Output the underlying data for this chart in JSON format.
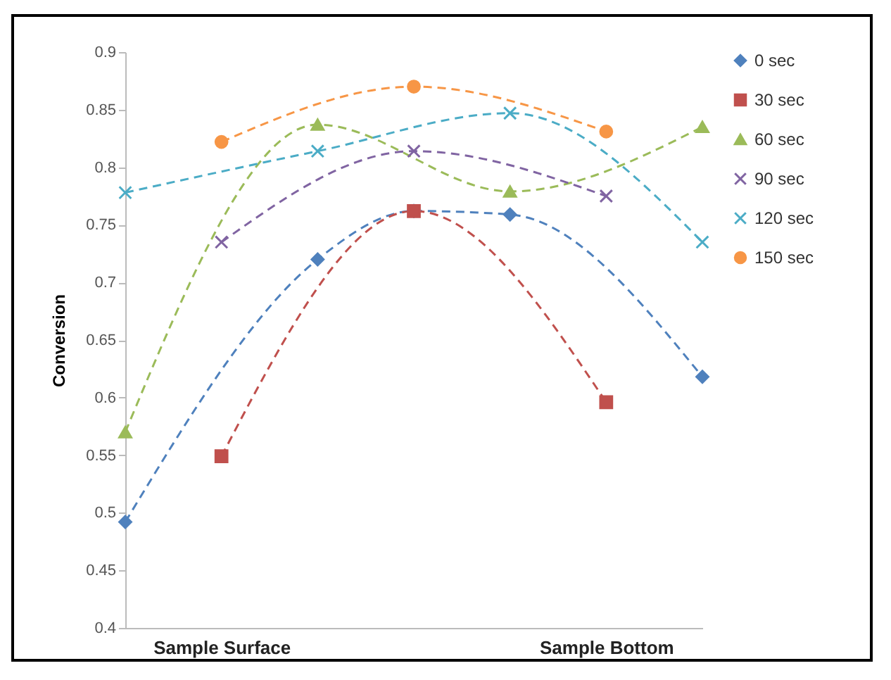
{
  "chart_data": {
    "type": "line",
    "ylabel": "Conversion",
    "categories": [
      null,
      "Sample Surface",
      null,
      null,
      null,
      "Sample Bottom",
      null
    ],
    "ylim": [
      0.4,
      0.9
    ],
    "yticks": [
      0.4,
      0.45,
      0.5,
      0.55,
      0.6,
      0.65,
      0.7,
      0.75,
      0.8,
      0.85,
      0.9
    ],
    "grid": false,
    "legend": "right",
    "line_style": "dashed",
    "series": [
      {
        "name": "0 sec",
        "color": "#4f81bd",
        "marker": "diamond",
        "values": [
          0.492,
          null,
          0.72,
          0.762,
          0.759,
          null,
          0.618
        ]
      },
      {
        "name": "30 sec",
        "color": "#c0504d",
        "marker": "square",
        "values": [
          null,
          0.549,
          null,
          0.762,
          null,
          0.596,
          null
        ]
      },
      {
        "name": "60 sec",
        "color": "#9bbb59",
        "marker": "triangle",
        "values": [
          0.57,
          null,
          0.837,
          null,
          0.779,
          null,
          0.835
        ]
      },
      {
        "name": "90 sec",
        "color": "#8064a2",
        "marker": "cross",
        "values": [
          null,
          0.735,
          null,
          0.814,
          null,
          0.775,
          null
        ]
      },
      {
        "name": "120 sec",
        "color": "#4bacc6",
        "marker": "cross",
        "values": [
          0.778,
          null,
          0.814,
          null,
          0.847,
          null,
          0.735
        ]
      },
      {
        "name": "150 sec",
        "color": "#f79646",
        "marker": "circle",
        "values": [
          null,
          0.822,
          null,
          0.87,
          null,
          0.831,
          null
        ]
      }
    ]
  }
}
